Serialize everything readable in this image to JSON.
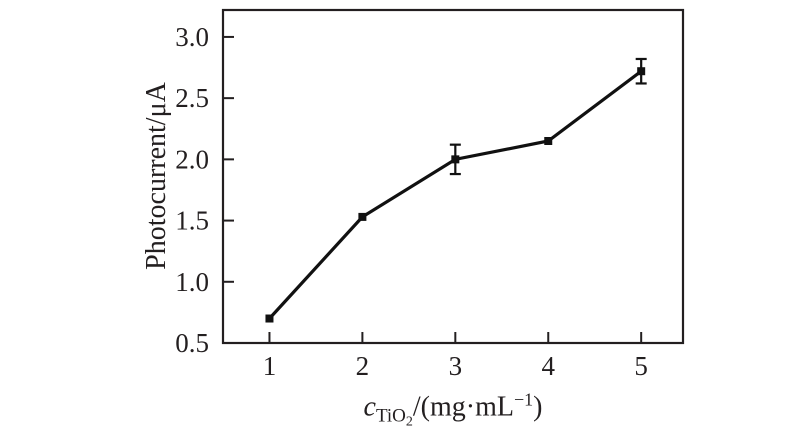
{
  "figure": {
    "background": "#ffffff",
    "ink_color": "#231f20",
    "data_line_color": "#111111"
  },
  "axes": {
    "ylabel": "Photocurrent/μA",
    "xlabel": {
      "variable": "c",
      "subscript": "TiO",
      "subsubscript": "2",
      "unit_pre": "/(mg·mL",
      "unit_sup": "−1",
      "unit_post": ")"
    }
  },
  "chart_data": {
    "type": "line",
    "title": "",
    "series_name": "photocurrent-vs-TiO2-concentration",
    "xlabel_text": "c_TiO2/(mg·mL−1)",
    "ylabel_text": "Photocurrent/μA",
    "x": [
      1,
      2,
      3,
      4,
      5
    ],
    "y": [
      0.7,
      1.53,
      2.0,
      2.15,
      2.72
    ],
    "yerr": [
      0,
      0,
      0.12,
      0,
      0.1
    ],
    "xticks": [
      1,
      2,
      3,
      4,
      5
    ],
    "xtick_labels": [
      "1",
      "2",
      "3",
      "4",
      "5"
    ],
    "yticks": [
      0.5,
      1.0,
      1.5,
      2.0,
      2.5,
      3.0
    ],
    "ytick_labels": [
      "0.5",
      "1.0",
      "1.5",
      "2.0",
      "2.5",
      "3.0"
    ],
    "xlim": [
      0.5,
      5.45
    ],
    "ylim": [
      0.5,
      3.22
    ],
    "marker": "filled-square",
    "grid": false,
    "legend": null
  }
}
